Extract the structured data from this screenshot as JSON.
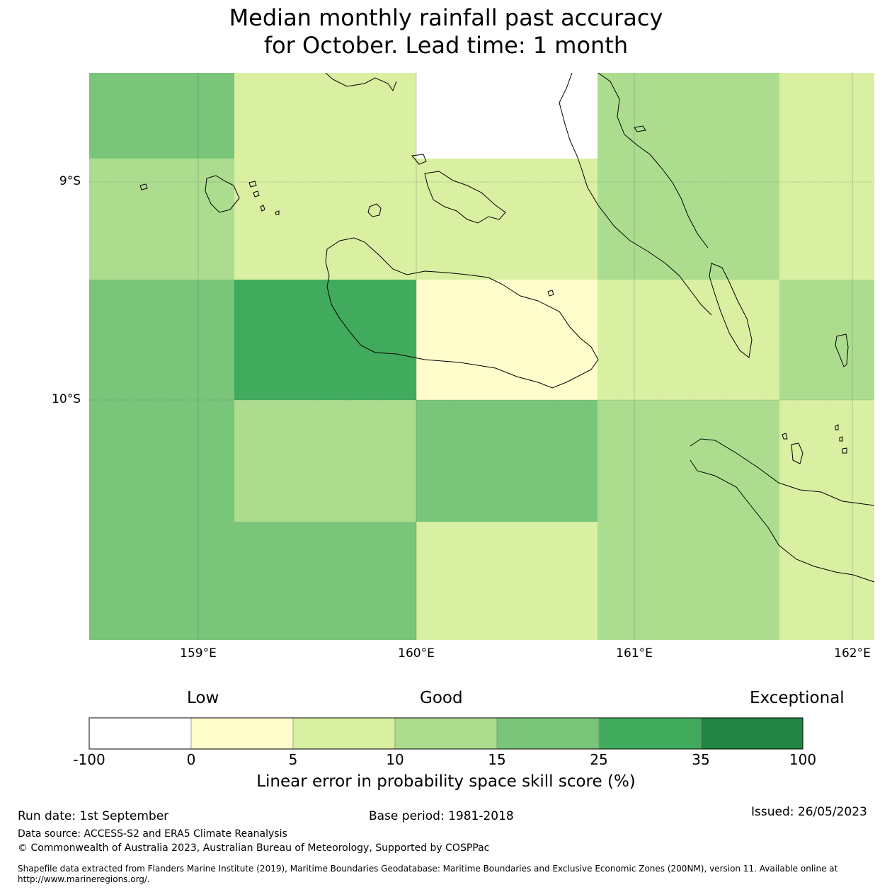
{
  "title_lines": [
    "Median monthly rainfall past accuracy",
    "for October. Lead time: 1 month"
  ],
  "map": {
    "lon_labels": [
      "159°E",
      "160°E",
      "161°E",
      "162°E"
    ],
    "lat_labels": [
      "9°S",
      "10°S"
    ],
    "colors": {
      "white": "#ffffff",
      "yellow": "#fefdcb",
      "lightgreen": "#d9efa1",
      "green2": "#acdd8e",
      "green3": "#79c57a",
      "green4": "#40ab5d",
      "green5": "#238543"
    },
    "grid_cells_description": "category per grid cell, rows north to south",
    "grid_rows": [
      [
        "green3",
        "lightgreen",
        "white",
        "green2",
        "lightgreen"
      ],
      [
        "green2",
        "lightgreen",
        "lightgreen",
        "green2",
        "lightgreen"
      ],
      [
        "green3",
        "green4",
        "yellow",
        "lightgreen",
        "green2"
      ],
      [
        "green3",
        "green2",
        "green3",
        "green2",
        "lightgreen"
      ],
      [
        "green3",
        "green3",
        "lightgreen",
        "green2",
        "lightgreen"
      ]
    ]
  },
  "colorbar": {
    "categories": [
      "Low",
      "Good",
      "Exceptional"
    ],
    "ticks": [
      "-100",
      "0",
      "5",
      "10",
      "15",
      "25",
      "35",
      "100"
    ],
    "colors": [
      "#ffffff",
      "#fefdcb",
      "#d9efa1",
      "#acdd8e",
      "#79c57a",
      "#40ab5d",
      "#238543"
    ],
    "label": "Linear error in probability space skill score (%)"
  },
  "footer": {
    "run_date": "Run date: 1st September",
    "base_period": "Base period: 1981-2018",
    "issued": "Issued: 26/05/2023",
    "data_source": "Data source: ACCESS-S2 and ERA5 Climate Reanalysis",
    "copyright": "© Commonwealth of Australia 2023, Australian Bureau of Meteorology, Supported by COSPPac",
    "shapefile_line1": "Shapefile data extracted from Flanders Marine Institute (2019), Maritime Boundaries Geodatabase: Maritime Boundaries and Exclusive Economic Zones (200NM), version 11. Available online at",
    "shapefile_line2": "http://www.marineregions.org/."
  }
}
